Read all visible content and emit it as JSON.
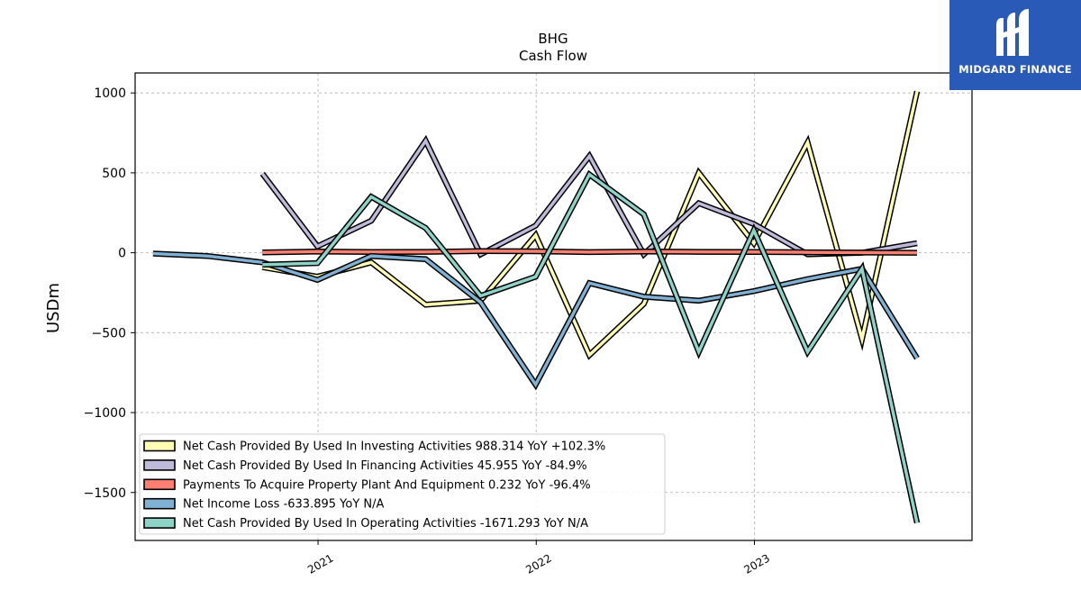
{
  "logo": {
    "text": "MIDGARD FINANCE",
    "background": "#2a5ab8",
    "icon": "midgard-m-logo-icon"
  },
  "chart_data": {
    "type": "line",
    "title": "BHG",
    "subtitle": "Cash Flow",
    "xlabel": "",
    "ylabel": "USDm",
    "ylim": [
      -1800,
      1125
    ],
    "xlim": [
      "2020-03-01",
      "2023-12-31"
    ],
    "yticks": [
      1000,
      500,
      0,
      -500,
      -1000,
      -1500
    ],
    "ytick_labels": [
      "1000",
      "500",
      "0",
      "−500",
      "−1000",
      "−1500"
    ],
    "xticks": [
      "2021-01-01",
      "2022-01-01",
      "2023-01-01"
    ],
    "xtick_labels": [
      "2021",
      "2022",
      "2023"
    ],
    "grid": true,
    "legend_position": "lower-left",
    "series": [
      {
        "name": "Net Cash Provided By Used In Investing Activities  988.314 YoY +102.3%",
        "color": "#ffffb3",
        "x": [
          "2020-09-30",
          "2020-12-31",
          "2021-03-31",
          "2021-06-30",
          "2021-09-30",
          "2021-12-31",
          "2022-03-31",
          "2022-06-30",
          "2022-09-30",
          "2022-12-31",
          "2023-03-31",
          "2023-06-30",
          "2023-09-30"
        ],
        "values": [
          -90,
          -150,
          -60,
          -325,
          -300,
          110,
          -640,
          -320,
          500,
          60,
          690,
          -540,
          1010
        ]
      },
      {
        "name": "Net Cash Provided By Used In Financing Activities  45.955 YoY -84.9%",
        "color": "#bebada",
        "x": [
          "2020-09-30",
          "2020-12-31",
          "2021-03-31",
          "2021-06-30",
          "2021-09-30",
          "2021-12-31",
          "2022-03-31",
          "2022-06-30",
          "2022-09-30",
          "2022-12-31",
          "2023-03-31",
          "2023-06-30",
          "2023-09-30"
        ],
        "values": [
          495,
          40,
          200,
          700,
          -10,
          170,
          605,
          -10,
          310,
          180,
          -10,
          0,
          60
        ]
      },
      {
        "name": "Payments To Acquire Property Plant And Equipment  0.232 YoY -96.4%",
        "color": "#fb8072",
        "x": [
          "2020-09-30",
          "2020-12-31",
          "2021-03-31",
          "2021-06-30",
          "2021-09-30",
          "2021-12-31",
          "2022-03-31",
          "2022-06-30",
          "2022-09-30",
          "2022-12-31",
          "2023-03-31",
          "2023-06-30",
          "2023-09-30"
        ],
        "values": [
          2,
          8,
          5,
          6,
          10,
          9,
          4,
          8,
          6,
          5,
          3,
          1,
          0.232
        ]
      },
      {
        "name": "Net Income Loss  -633.895 YoY N/A",
        "color": "#80b1d3",
        "x": [
          "2020-03-31",
          "2020-06-30",
          "2020-09-30",
          "2020-12-31",
          "2021-03-31",
          "2021-06-30",
          "2021-09-30",
          "2021-12-31",
          "2022-03-31",
          "2022-06-30",
          "2022-09-30",
          "2022-12-31",
          "2023-03-31",
          "2023-06-30",
          "2023-09-30"
        ],
        "values": [
          -5,
          -20,
          -60,
          -170,
          -20,
          -40,
          -310,
          -825,
          -190,
          -275,
          -300,
          -240,
          -165,
          -100,
          -660
        ]
      },
      {
        "name": "Net Cash Provided By Used In Operating Activities  -1671.293 YoY N/A",
        "color": "#8dd3c7",
        "x": [
          "2020-09-30",
          "2020-12-31",
          "2021-03-31",
          "2021-06-30",
          "2021-09-30",
          "2021-12-31",
          "2022-03-31",
          "2022-06-30",
          "2022-09-30",
          "2022-12-31",
          "2023-03-31",
          "2023-06-30",
          "2023-09-30"
        ],
        "values": [
          -75,
          -65,
          350,
          155,
          -270,
          -150,
          490,
          240,
          -620,
          140,
          -620,
          -100,
          -1690
        ]
      }
    ]
  }
}
